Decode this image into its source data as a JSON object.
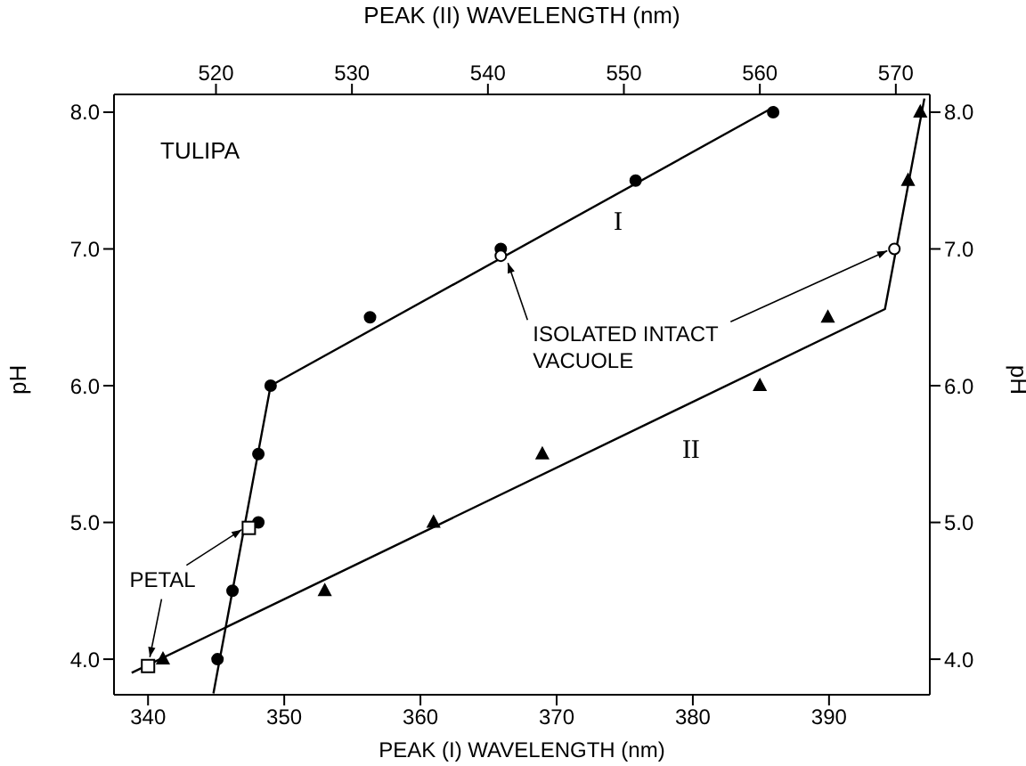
{
  "chart_data": {
    "type": "scatter",
    "xlabel": "PEAK (I) WAVELENGTH (nm)",
    "x2label": "PEAK (II) WAVELENGTH (nm)",
    "ylabel": "pH",
    "y2label": "pH",
    "annotations": [
      "TULIPA",
      {
        "text": "PETAL",
        "x": 347.4,
        "y": 4.96
      }
    ],
    "xlim": [
      337.5,
      397.4
    ],
    "xticks": [
      340,
      350,
      360,
      370,
      380,
      390
    ],
    "x2lim": [
      512.5,
      572.5
    ],
    "x2ticks": [
      520,
      530,
      540,
      550,
      560,
      570
    ],
    "ylim": [
      3.74,
      8.13
    ],
    "yticks": [
      {
        "value": 4,
        "label": "4.0"
      },
      {
        "value": 5,
        "label": "5.0"
      },
      {
        "value": 6,
        "label": "6.0"
      },
      {
        "value": 7,
        "label": "7.0"
      },
      {
        "value": 8,
        "label": "8.0"
      }
    ],
    "y2lim": [
      3.74,
      8.13
    ],
    "y2ticks": [
      {
        "value": 4,
        "label": "4.0"
      },
      {
        "value": 5,
        "label": "5.0"
      },
      {
        "value": 6,
        "label": "6.0"
      },
      {
        "value": 7,
        "label": "7.0"
      },
      {
        "value": 8,
        "label": "8.0"
      }
    ],
    "grid": false,
    "series": [
      {
        "marker": "circle",
        "color": "#000000",
        "x": [
          345.1,
          346.2,
          348.1,
          348.1,
          349.0,
          356.3,
          365.9,
          375.8,
          385.9
        ],
        "values": [
          4.0,
          4.5,
          5.0,
          5.5,
          6.0,
          6.5,
          7.0,
          7.5,
          8.0
        ]
      },
      {
        "type": "line",
        "name": "I",
        "marker": "none",
        "line_style": "solid",
        "color": "#000000",
        "x": [
          344.8,
          349.0,
          386.0
        ],
        "values": [
          3.75,
          6.0,
          8.04
        ]
      },
      {
        "axis": "x2",
        "marker": "triangle",
        "color": "#000000",
        "x": [
          516.1,
          528.0,
          536.0,
          544.0,
          560.0,
          565.0,
          570.9,
          571.8
        ],
        "values": [
          4.0,
          4.5,
          5.0,
          5.5,
          6.0,
          6.5,
          7.5,
          8.0
        ]
      },
      {
        "type": "line",
        "axis": "x2",
        "name": "II",
        "marker": "none",
        "line_style": "solid",
        "color": "#000000",
        "x": [
          513.8,
          569.2,
          572.1
        ],
        "values": [
          3.9,
          6.56,
          8.1
        ]
      },
      {
        "name": "ISOLATED INTACT VACUOLE",
        "marker": "circle",
        "color": "#ffffff",
        "x": [
          365.9,
          394.8
        ],
        "values": [
          6.95,
          7.0
        ]
      },
      {
        "marker": "square",
        "color": "#ffffff",
        "x": [
          347.4,
          340.0
        ],
        "values": [
          4.96,
          3.95
        ]
      }
    ]
  }
}
